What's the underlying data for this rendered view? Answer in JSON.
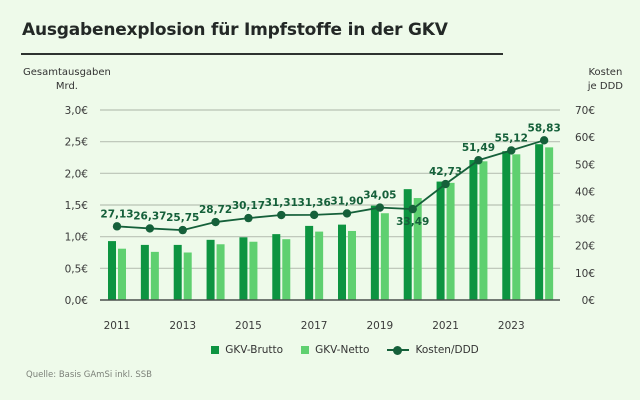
{
  "header": {
    "title": "Ausgabenexplosion für Impfstoffe in der GKV"
  },
  "left_axis_title": [
    "Gesamtausgaben",
    "Mrd."
  ],
  "right_axis_title": [
    "Kosten",
    "je DDD"
  ],
  "legend": [
    {
      "label": "GKV-Brutto",
      "type": "bar",
      "color": "#0d9441"
    },
    {
      "label": "GKV-Netto",
      "type": "bar",
      "color": "#5fd070"
    },
    {
      "label": "Kosten/DDD",
      "type": "line",
      "color": "#15603a"
    }
  ],
  "source": "Quelle: Basis GAmSi inkl. SSB",
  "colors": {
    "background": "#eefaea",
    "brutto": "#0d9441",
    "netto": "#5fd070",
    "line": "#15603a",
    "grid": "#b9c2b5",
    "axis": "#4a4f4c"
  },
  "chart_data": {
    "type": "bar",
    "title": "Ausgabenexplosion für Impfstoffe in der GKV",
    "categories": [
      "2011",
      "2012",
      "2013",
      "2014",
      "2015",
      "2016",
      "2017",
      "2018",
      "2019",
      "2020",
      "2021",
      "2022",
      "2023",
      "2024"
    ],
    "x_tick_labels": [
      "2011",
      "2013",
      "2015",
      "2017",
      "2019",
      "2021",
      "2023"
    ],
    "series": [
      {
        "name": "GKV-Brutto",
        "type": "bar",
        "axis": "left",
        "values": [
          0.93,
          0.87,
          0.87,
          0.95,
          0.99,
          1.04,
          1.17,
          1.19,
          1.49,
          1.75,
          1.87,
          2.21,
          2.35,
          2.46
        ]
      },
      {
        "name": "GKV-Netto",
        "type": "bar",
        "axis": "left",
        "values": [
          0.81,
          0.76,
          0.75,
          0.88,
          0.92,
          0.96,
          1.08,
          1.09,
          1.37,
          1.61,
          1.85,
          2.19,
          2.3,
          2.41
        ]
      },
      {
        "name": "Kosten/DDD",
        "type": "line",
        "axis": "right",
        "values": [
          27.13,
          26.37,
          25.75,
          28.72,
          30.17,
          31.31,
          31.36,
          31.9,
          34.05,
          33.49,
          42.73,
          51.49,
          55.12,
          58.83
        ],
        "labels": [
          "27,13",
          "26,37",
          "25,75",
          "28,72",
          "30,17",
          "31,31",
          "31,36",
          "31,90",
          "34,05",
          "33,49",
          "42,73",
          "51,49",
          "55,12",
          "58,83"
        ]
      }
    ],
    "ylabel": "Gesamtausgaben Mrd.",
    "ylabel_right": "Kosten je DDD",
    "ylim": [
      0,
      3.0
    ],
    "ylim_right": [
      0,
      70
    ],
    "y_ticks": [
      "0,0€",
      "0,5€",
      "1,0€",
      "1,5€",
      "2,0€",
      "2,5€",
      "3,0€"
    ],
    "y_ticks_right": [
      "0€",
      "10€",
      "20€",
      "30€",
      "40€",
      "50€",
      "60€",
      "70€"
    ],
    "grid": true,
    "legend_position": "bottom"
  }
}
